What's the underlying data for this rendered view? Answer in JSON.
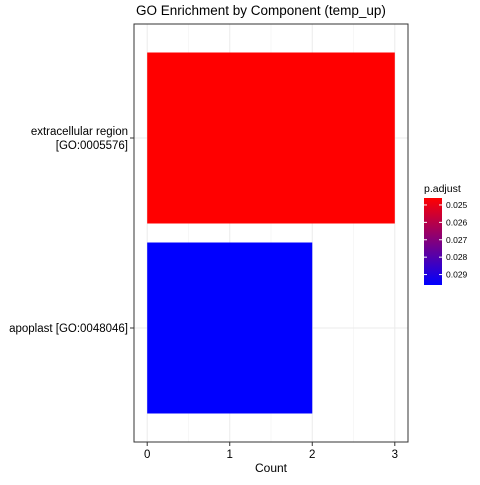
{
  "chart_data": {
    "type": "bar",
    "orientation": "horizontal",
    "title": "GO Enrichment by Component (temp_up)",
    "xlabel": "Count",
    "ylabel": "",
    "xlim": [
      -0.16,
      3.16
    ],
    "x_ticks": [
      "0",
      "1",
      "2",
      "3"
    ],
    "grid": true,
    "categories": [
      {
        "lines": [
          "extracellular region",
          "[GO:0005576]"
        ]
      },
      {
        "lines": [
          "apoplast [GO:0048046]"
        ]
      }
    ],
    "values": [
      3,
      2
    ],
    "p_adjust": [
      0.0246,
      0.0296
    ],
    "colors": [
      "#ff0000",
      "#0000ff"
    ],
    "legend": {
      "title": "p.adjust",
      "placement": "right",
      "range": [
        0.0246,
        0.0296
      ],
      "low_color": "#ff0000",
      "high_color": "#0000ff",
      "ticks": [
        {
          "value": 0.025,
          "label": "0.025"
        },
        {
          "value": 0.026,
          "label": "0.026"
        },
        {
          "value": 0.027,
          "label": "0.027"
        },
        {
          "value": 0.028,
          "label": "0.028"
        },
        {
          "value": 0.029,
          "label": "0.029"
        }
      ]
    }
  }
}
